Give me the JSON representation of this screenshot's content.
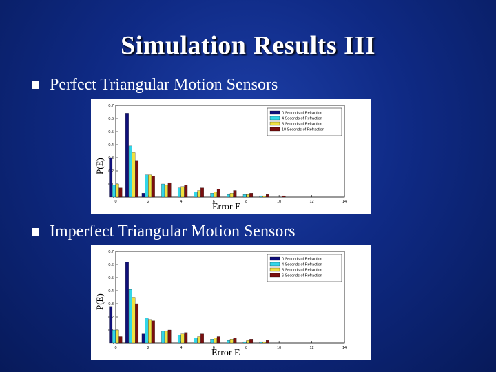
{
  "slide": {
    "title": "Simulation Results III",
    "bullets": [
      "Perfect Triangular Motion Sensors",
      "Imperfect Triangular Motion Sensors"
    ]
  },
  "colors": [
    "#10107a",
    "#33d6e8",
    "#f0e040",
    "#7a0f0f"
  ],
  "chart_data": [
    {
      "type": "bar",
      "title": "",
      "xlabel": "Error E",
      "ylabel": "P(E)",
      "categories": [
        0,
        1,
        2,
        3,
        4,
        5,
        6,
        7,
        8,
        9,
        10,
        11
      ],
      "x_tick_labels": [
        "0",
        "2",
        "4",
        "6",
        "8",
        "10",
        "12",
        "14"
      ],
      "y_tick_labels": [
        "0",
        "0.1",
        "0.2",
        "0.3",
        "0.4",
        "0.5",
        "0.6",
        "0.7"
      ],
      "xlim": [
        0,
        14
      ],
      "ylim": [
        0,
        0.7
      ],
      "grid": false,
      "legend_position": "top-right",
      "series": [
        {
          "name": "0 Seconds of Refraction",
          "values": [
            0.3,
            0.64,
            0.03,
            0.0,
            0.0,
            0.0,
            0.0,
            0.0,
            0.0,
            0.0,
            0.0,
            0.0
          ]
        },
        {
          "name": "4 Seconds of Refraction",
          "values": [
            0.09,
            0.39,
            0.17,
            0.1,
            0.07,
            0.04,
            0.03,
            0.02,
            0.02,
            0.01,
            0.0,
            0.0
          ]
        },
        {
          "name": "8 Seconds of Refraction",
          "values": [
            0.1,
            0.34,
            0.17,
            0.09,
            0.08,
            0.05,
            0.04,
            0.03,
            0.02,
            0.01,
            0.0,
            0.0
          ]
        },
        {
          "name": "10 Seconds of Refraction",
          "values": [
            0.07,
            0.28,
            0.16,
            0.11,
            0.09,
            0.07,
            0.06,
            0.05,
            0.03,
            0.02,
            0.01,
            0.0
          ]
        }
      ]
    },
    {
      "type": "bar",
      "title": "",
      "xlabel": "Error E",
      "ylabel": "P(E)",
      "categories": [
        0,
        1,
        2,
        3,
        4,
        5,
        6,
        7,
        8,
        9,
        10,
        11
      ],
      "x_tick_labels": [
        "0",
        "2",
        "4",
        "6",
        "8",
        "10",
        "12",
        "14"
      ],
      "y_tick_labels": [
        "0",
        "0.1",
        "0.2",
        "0.3",
        "0.4",
        "0.5",
        "0.6",
        "0.7"
      ],
      "xlim": [
        0,
        14
      ],
      "ylim": [
        0,
        0.7
      ],
      "grid": false,
      "legend_position": "top-right",
      "series": [
        {
          "name": "0 Seconds of Refraction",
          "values": [
            0.28,
            0.62,
            0.07,
            0.0,
            0.0,
            0.0,
            0.0,
            0.0,
            0.0,
            0.0,
            0.0,
            0.0
          ]
        },
        {
          "name": "4 Seconds of Refraction",
          "values": [
            0.1,
            0.41,
            0.19,
            0.09,
            0.06,
            0.04,
            0.03,
            0.02,
            0.01,
            0.01,
            0.0,
            0.0
          ]
        },
        {
          "name": "8 Seconds of Refraction",
          "values": [
            0.1,
            0.35,
            0.18,
            0.09,
            0.07,
            0.05,
            0.04,
            0.03,
            0.02,
            0.01,
            0.0,
            0.0
          ]
        },
        {
          "name": "6 Seconds of Refraction",
          "values": [
            0.05,
            0.3,
            0.17,
            0.1,
            0.08,
            0.07,
            0.05,
            0.04,
            0.03,
            0.02,
            0.0,
            0.0
          ]
        }
      ]
    }
  ]
}
